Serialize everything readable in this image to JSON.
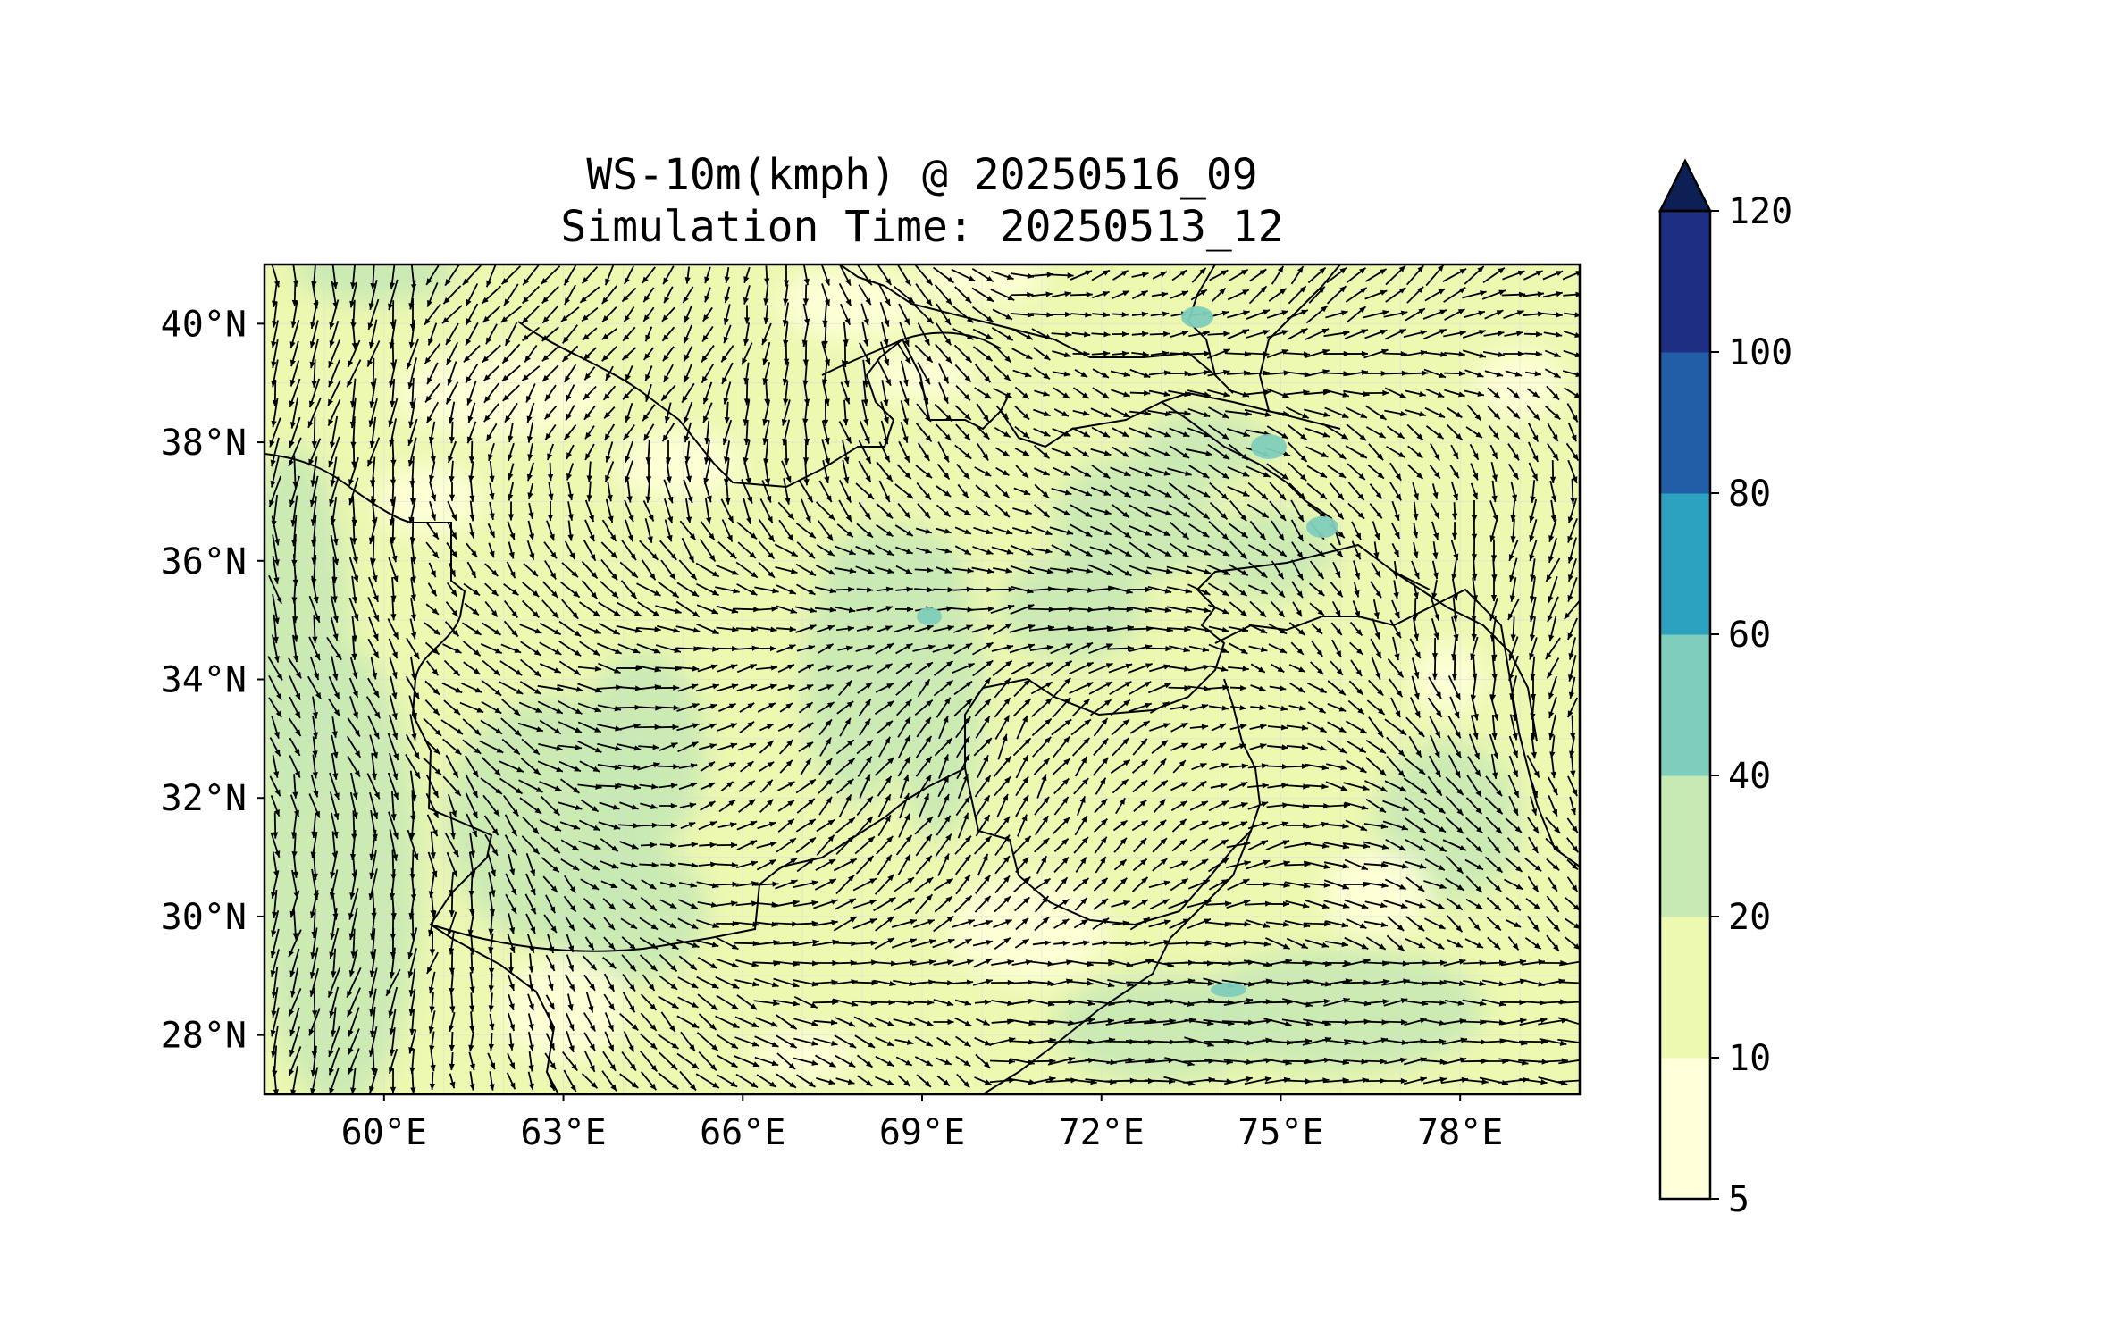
{
  "title": "WS-10m(kmph) @ 20250516_09",
  "subtitle": "Simulation Time: 20250513_12",
  "map": {
    "lon_range": [
      58,
      80
    ],
    "lat_range": [
      27,
      41
    ],
    "lon_ticks": [
      {
        "value": 60,
        "label": "60°E"
      },
      {
        "value": 63,
        "label": "63°E"
      },
      {
        "value": 66,
        "label": "66°E"
      },
      {
        "value": 69,
        "label": "69°E"
      },
      {
        "value": 72,
        "label": "72°E"
      },
      {
        "value": 75,
        "label": "75°E"
      },
      {
        "value": 78,
        "label": "78°E"
      }
    ],
    "lat_ticks": [
      {
        "value": 28,
        "label": "28°N"
      },
      {
        "value": 30,
        "label": "30°N"
      },
      {
        "value": 32,
        "label": "32°N"
      },
      {
        "value": 34,
        "label": "34°N"
      },
      {
        "value": 36,
        "label": "36°N"
      },
      {
        "value": 38,
        "label": "38°N"
      },
      {
        "value": 40,
        "label": "40°N"
      }
    ],
    "gridlines": true,
    "field": "10 m wind speed with wind direction arrows"
  },
  "colorbar": {
    "levels": [
      5,
      10,
      20,
      40,
      60,
      80,
      100,
      120
    ],
    "labels": [
      "5",
      "10",
      "20",
      "40",
      "60",
      "80",
      "100",
      "120"
    ],
    "colors": [
      "#ffffd9",
      "#edf8b1",
      "#c7e9b4",
      "#7fcdbb",
      "#2ca2c0",
      "#225ea8",
      "#1d2e83"
    ],
    "extend_color": "#0c2055",
    "extend": "max"
  }
}
